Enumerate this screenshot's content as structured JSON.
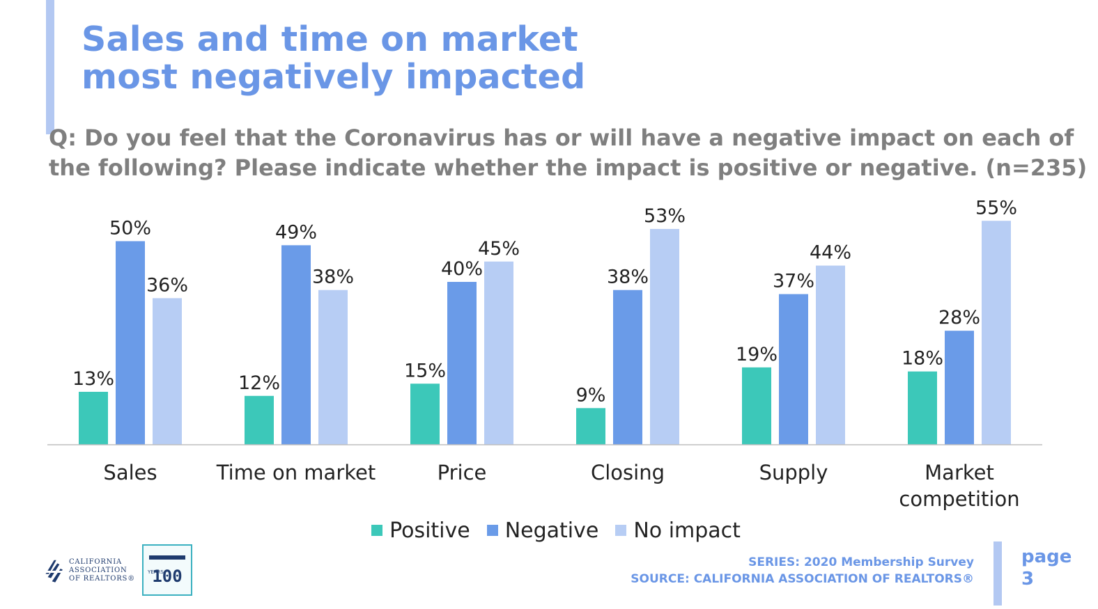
{
  "title": {
    "line1": "Sales and time on market",
    "line2": "most negatively impacted"
  },
  "question": {
    "line1": "Q: Do you feel that the Coronavirus has or will have a negative impact on each of",
    "line2": "the following? Please indicate whether the impact is positive or negative. (n=235)"
  },
  "chart_data": {
    "type": "bar",
    "categories": [
      "Sales",
      "Time on market",
      "Price",
      "Closing",
      "Supply",
      "Market competition"
    ],
    "category_lines": [
      [
        "Sales"
      ],
      [
        "Time on market"
      ],
      [
        "Price"
      ],
      [
        "Closing"
      ],
      [
        "Supply"
      ],
      [
        "Market",
        "competition"
      ]
    ],
    "series": [
      {
        "name": "Positive",
        "color": "#3cc8b9",
        "values": [
          13,
          12,
          15,
          9,
          19,
          18
        ],
        "labels": [
          "13%",
          "12%",
          "15%",
          "9%",
          "19%",
          "18%"
        ]
      },
      {
        "name": "Negative",
        "color": "#6a9be8",
        "values": [
          50,
          49,
          40,
          38,
          37,
          28
        ],
        "labels": [
          "50%",
          "49%",
          "40%",
          "38%",
          "37%",
          "28%"
        ]
      },
      {
        "name": "No impact",
        "color": "#b7cdf4",
        "values": [
          36,
          38,
          45,
          53,
          44,
          55
        ],
        "labels": [
          "36%",
          "38%",
          "45%",
          "53%",
          "44%",
          "55%"
        ]
      }
    ],
    "ylim": [
      0,
      55
    ],
    "grid": false,
    "legend_position": "bottom"
  },
  "logo": {
    "line1": "CALIFORNIA",
    "line2": "ASSOCIATION",
    "line3": "OF REALTORS®"
  },
  "badge": {
    "number": "100",
    "years": "YEARS"
  },
  "footer": {
    "series": "SERIES: 2020 Membership Survey",
    "source": "SOURCE: CALIFORNIA ASSOCIATION OF REALTORS®"
  },
  "page": {
    "label": "page",
    "number": "3"
  }
}
